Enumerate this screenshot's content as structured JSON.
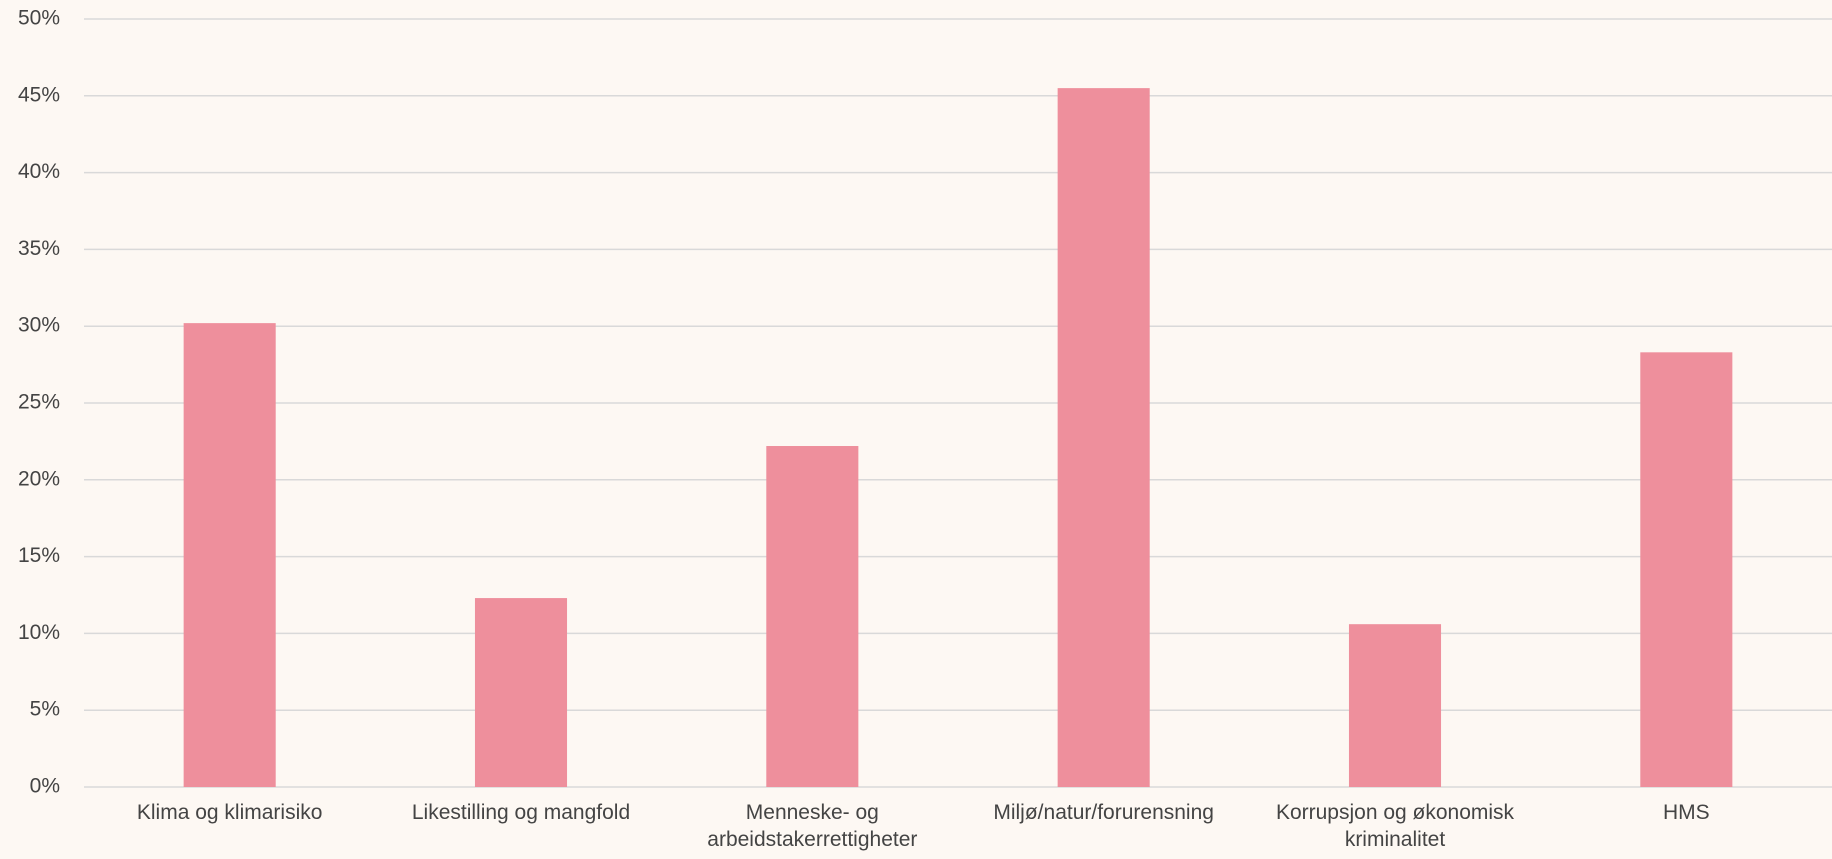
{
  "chart_data": {
    "type": "bar",
    "categories": [
      "Klima og klimarisiko",
      "Likestilling og mangfold",
      "Menneske- og arbeidstakerrettigheter",
      "Miljø/natur/forurensning",
      "Korrupsjon og økonomisk kriminalitet",
      "HMS"
    ],
    "values": [
      30.2,
      12.3,
      22.2,
      45.5,
      10.6,
      28.3
    ],
    "color": "#ee8f9c",
    "ylim": [
      0,
      50
    ],
    "yticks": [
      {
        "value": 0,
        "label": "0%"
      },
      {
        "value": 5,
        "label": "5%"
      },
      {
        "value": 10,
        "label": "10%"
      },
      {
        "value": 15,
        "label": "15%"
      },
      {
        "value": 20,
        "label": "20%"
      },
      {
        "value": 25,
        "label": "25%"
      },
      {
        "value": 30,
        "label": "30%"
      },
      {
        "value": 35,
        "label": "35%"
      },
      {
        "value": 40,
        "label": "40%"
      },
      {
        "value": 45,
        "label": "45%"
      },
      {
        "value": 50,
        "label": "50%"
      }
    ],
    "grid": true
  }
}
